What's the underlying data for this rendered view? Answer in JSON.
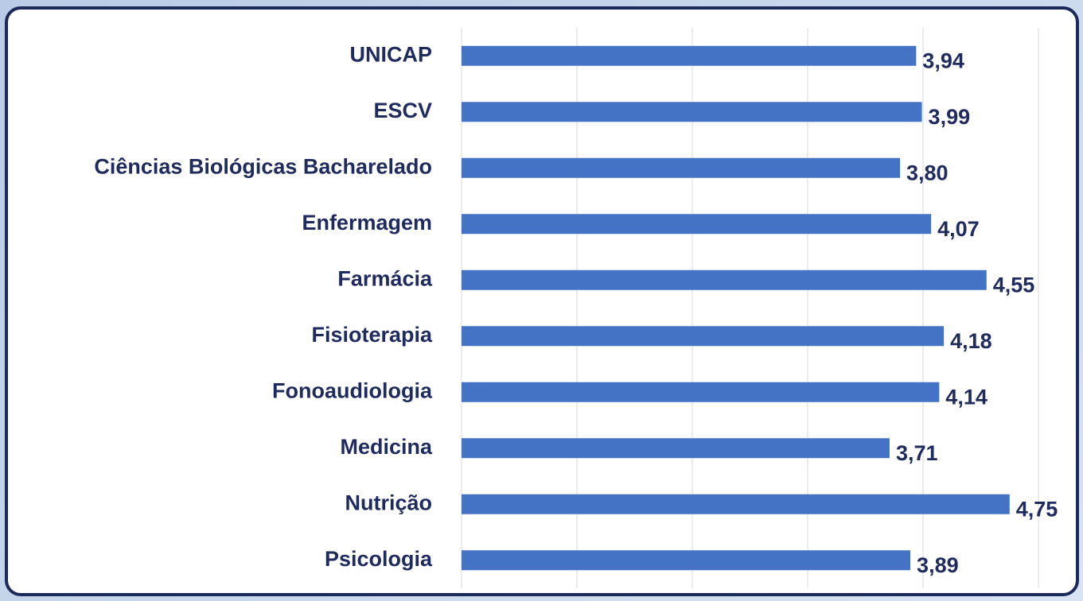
{
  "chart_data": {
    "type": "bar",
    "orientation": "horizontal",
    "categories": [
      "UNICAP",
      "ESCV",
      "Ciências Biológicas Bacharelado",
      "Enfermagem",
      "Farmácia",
      "Fisioterapia",
      "Fonoaudiologia",
      "Medicina",
      "Nutrição",
      "Psicologia"
    ],
    "values": [
      3.94,
      3.99,
      3.8,
      4.07,
      4.55,
      4.18,
      4.14,
      3.71,
      4.75,
      3.89
    ],
    "value_labels": [
      "3,94",
      "3,99",
      "3,80",
      "4,07",
      "4,55",
      "4,18",
      "4,14",
      "3,71",
      "4,75",
      "3,89"
    ],
    "color": "#4472c4",
    "xlim": [
      0,
      5
    ],
    "xticks": [
      0,
      1,
      2,
      3,
      4,
      5
    ],
    "grid": true
  }
}
